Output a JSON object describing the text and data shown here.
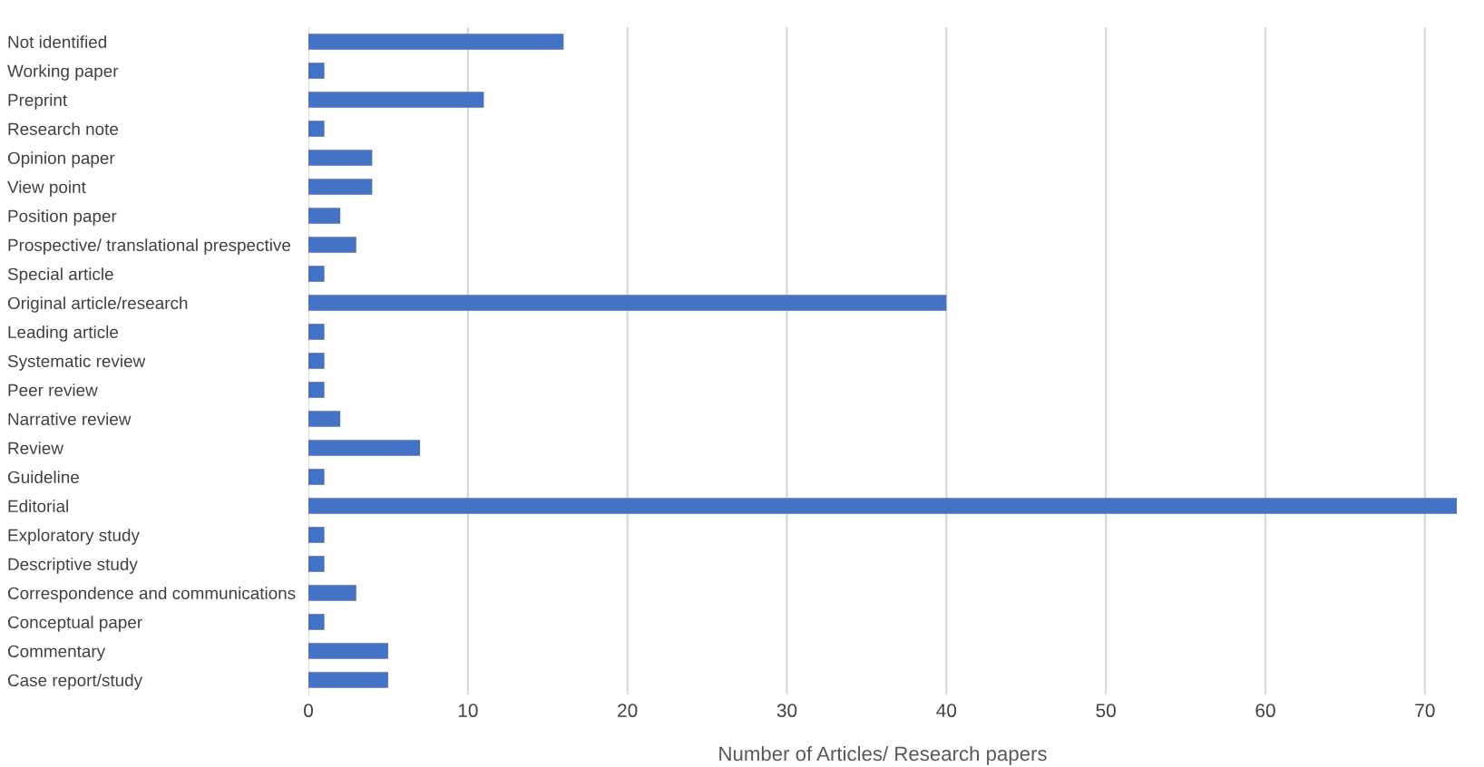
{
  "chart_data": {
    "type": "bar",
    "orientation": "horizontal",
    "xlabel": "Number of Articles/ Research papers",
    "categories": [
      "Not identified",
      "Working paper",
      "Preprint",
      "Research note",
      "Opinion paper",
      "View point",
      "Position paper",
      "Prospective/ translational prespective",
      "Special article",
      "Original article/research",
      "Leading article",
      "Systematic review",
      "Peer review",
      "Narrative review",
      "Review",
      "Guideline",
      "Editorial",
      "Exploratory study",
      "Descriptive study",
      "Correspondence and communications",
      "Conceptual paper",
      "Commentary",
      "Case report/study"
    ],
    "values": [
      16,
      1,
      11,
      1,
      4,
      4,
      2,
      3,
      1,
      40,
      1,
      1,
      1,
      2,
      7,
      1,
      72,
      1,
      1,
      3,
      1,
      5,
      5
    ],
    "color": "#4472c4",
    "xlim": [
      0,
      72
    ],
    "xticks": [
      0,
      10,
      20,
      30,
      40,
      50,
      60,
      70
    ],
    "grid": "x"
  }
}
